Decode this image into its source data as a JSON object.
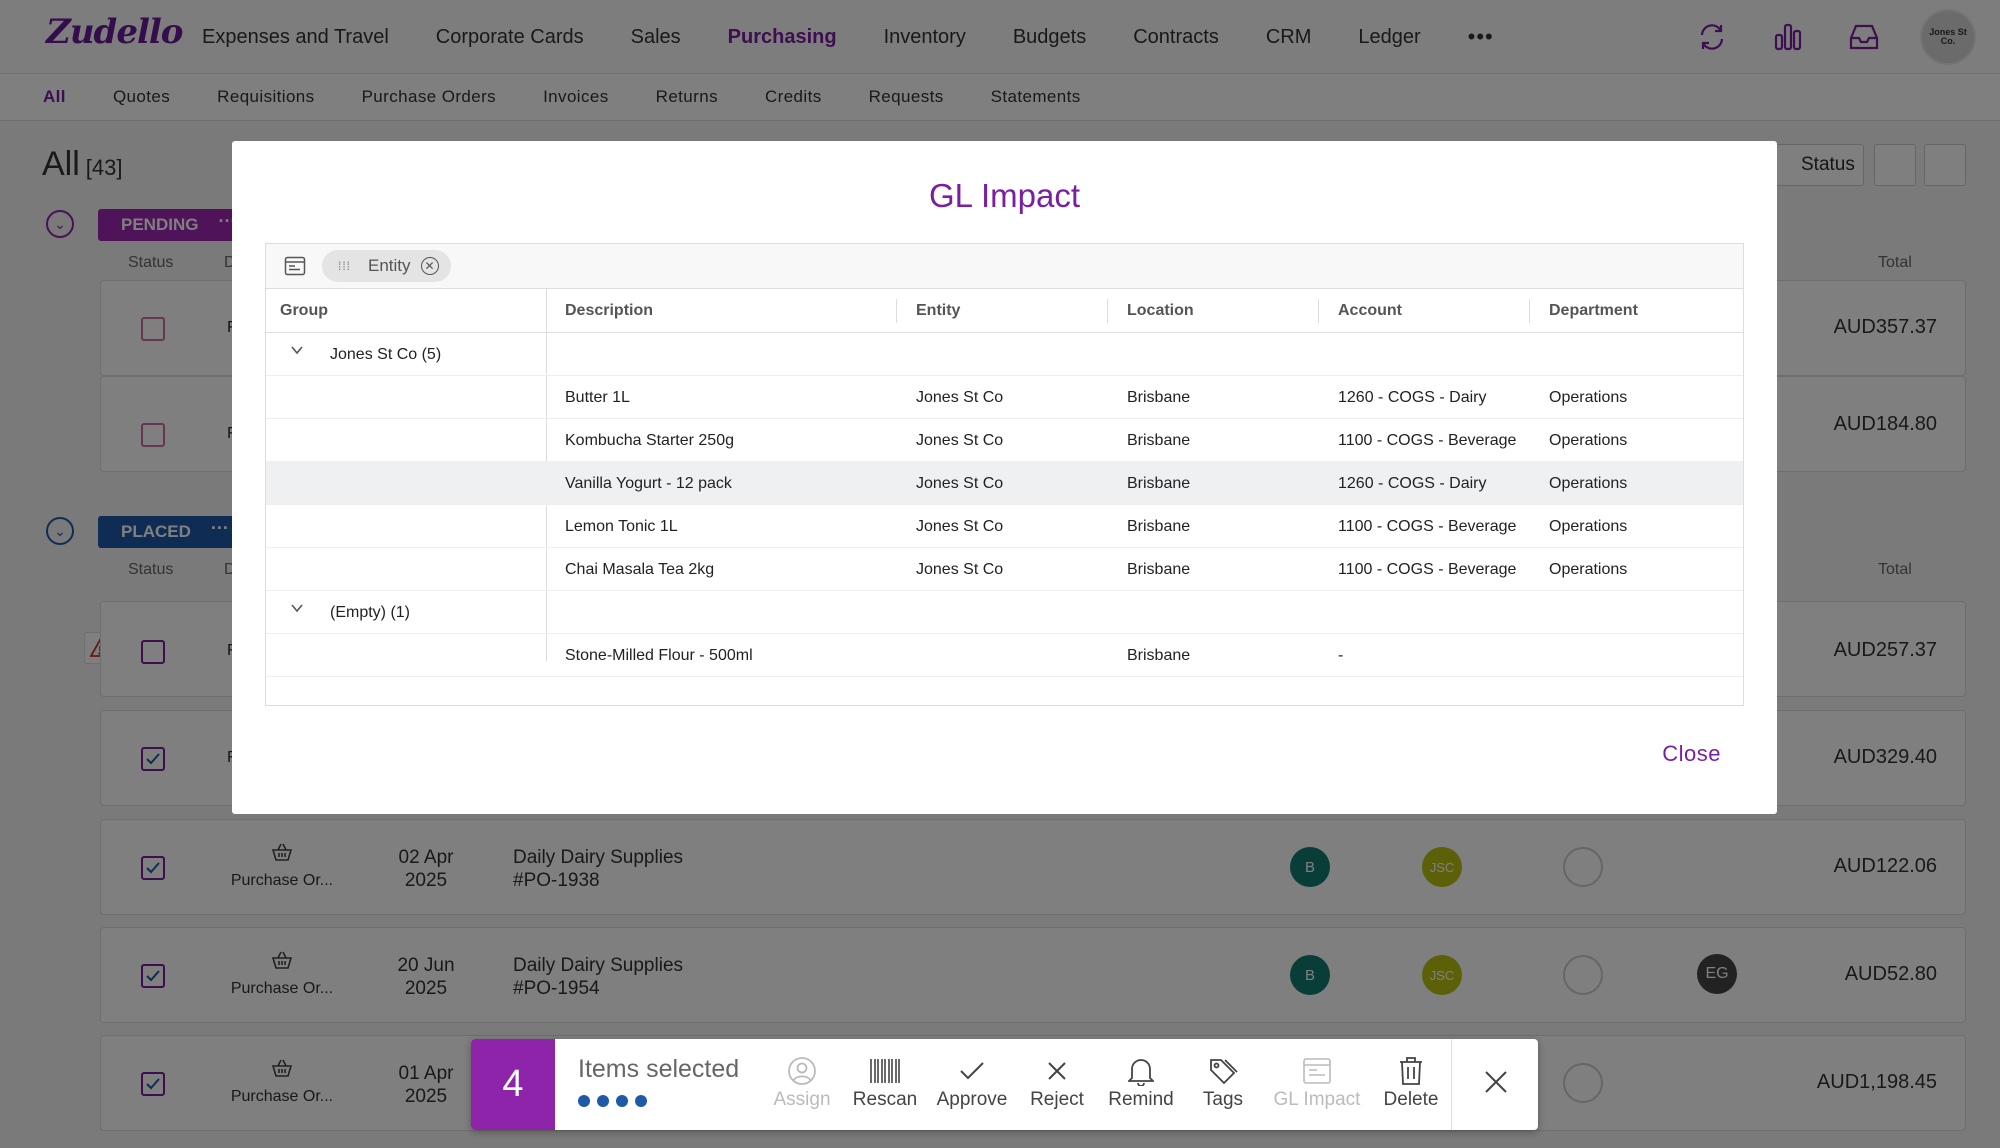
{
  "app": {
    "logo": "Zudello",
    "nav": [
      "Expenses and Travel",
      "Corporate Cards",
      "Sales",
      "Purchasing",
      "Inventory",
      "Budgets",
      "Contracts",
      "CRM",
      "Ledger"
    ],
    "nav_more": "•••",
    "active_nav": "Purchasing",
    "avatar_label": "Jones St Co."
  },
  "subnav": [
    "All",
    "Quotes",
    "Requisitions",
    "Purchase Orders",
    "Invoices",
    "Returns",
    "Credits",
    "Requests",
    "Statements"
  ],
  "page": {
    "title": "All",
    "count": "[43]",
    "status_btn": "Status"
  },
  "groups": {
    "pending": {
      "label": "PENDING",
      "dots": "···"
    },
    "placed": {
      "label": "PLACED",
      "dots": "···"
    },
    "col_status": "Status",
    "col_d": "D",
    "col_total": "Total"
  },
  "rows": [
    {
      "total": "AUD357.37",
      "stub": "F"
    },
    {
      "total": "AUD184.80",
      "stub": "F"
    },
    {
      "total": "AUD257.37",
      "stub": "F"
    },
    {
      "total": "AUD329.40",
      "stub": "F"
    },
    {
      "type": "Purchase Or...",
      "date1": "02 Apr",
      "date2": "2025",
      "title1": "Daily Dairy Supplies",
      "title2": "#PO-1938",
      "av1": "B",
      "av2": "JSC",
      "total": "AUD122.06"
    },
    {
      "type": "Purchase Or...",
      "date1": "20 Jun",
      "date2": "2025",
      "title1": "Daily Dairy Supplies",
      "title2": "#PO-1954",
      "av1": "B",
      "av2": "JSC",
      "av3": "EG",
      "total": "AUD52.80"
    },
    {
      "type": "Purchase Or...",
      "date1": "01 Apr",
      "date2": "2025",
      "total": "AUD1,198.45"
    }
  ],
  "modal": {
    "title": "GL Impact",
    "chip": "Entity",
    "columns": [
      "Group",
      "Description",
      "Entity",
      "Location",
      "Account",
      "Department"
    ],
    "groups": [
      {
        "label": "Jones St Co (5)",
        "items": [
          {
            "description": "Butter 1L",
            "entity": "Jones St Co",
            "location": "Brisbane",
            "account": "1260 - COGS - Dairy",
            "department": "Operations"
          },
          {
            "description": "Kombucha Starter 250g",
            "entity": "Jones St Co",
            "location": "Brisbane",
            "account": "1100 - COGS - Beverage",
            "department": "Operations"
          },
          {
            "description": "Vanilla Yogurt - 12 pack",
            "entity": "Jones St Co",
            "location": "Brisbane",
            "account": "1260 - COGS - Dairy",
            "department": "Operations"
          },
          {
            "description": "Lemon Tonic 1L",
            "entity": "Jones St Co",
            "location": "Brisbane",
            "account": "1100 - COGS - Beverage",
            "department": "Operations"
          },
          {
            "description": "Chai Masala Tea 2kg",
            "entity": "Jones St Co",
            "location": "Brisbane",
            "account": "1100 - COGS - Beverage",
            "department": "Operations"
          }
        ]
      },
      {
        "label": "(Empty) (1)",
        "items": [
          {
            "description": "Stone-Milled Flour - 500ml",
            "entity": "",
            "location": "Brisbane",
            "account": "-",
            "department": ""
          }
        ]
      }
    ],
    "close": "Close"
  },
  "actionbar": {
    "count": "4",
    "label": "Items selected",
    "actions": [
      "Assign",
      "Rescan",
      "Approve",
      "Reject",
      "Remind",
      "Tags",
      "GL Impact",
      "Delete"
    ]
  },
  "colors": {
    "accent": "#7b1fa2",
    "pending": "#9c27b0",
    "placed": "#1e5aa8"
  }
}
